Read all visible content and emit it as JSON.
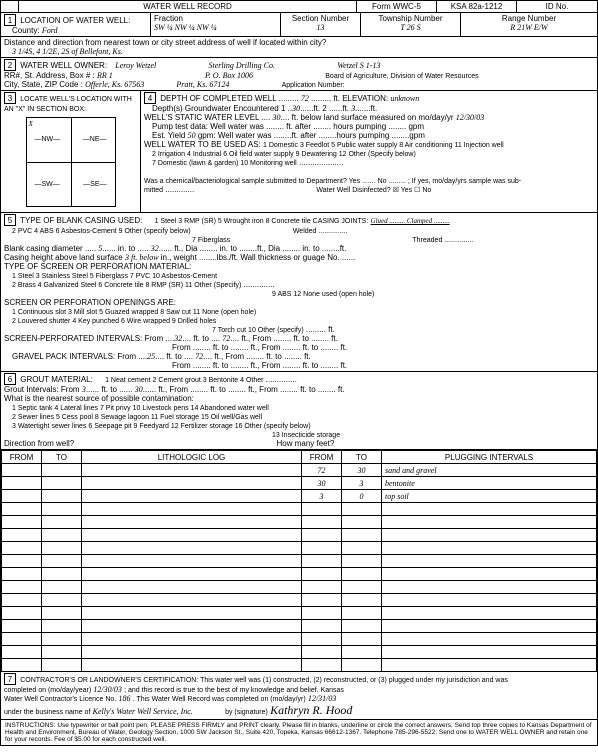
{
  "header": {
    "title": "WATER WELL RECORD",
    "form": "Form WWC-5",
    "ksa": "KSA 82a-1212",
    "id_label": "ID No."
  },
  "s1": {
    "label": "LOCATION OF WATER WELL:",
    "county_label": "County:",
    "county": "Ford",
    "fraction_label": "Fraction",
    "fraction": "SW ¼ NW ¼ NW ¼",
    "section_label": "Section Number",
    "section": "13",
    "township_label": "Township Number",
    "township": "T 26 S",
    "range_label": "Range Number",
    "range": "R 21W E/W",
    "distance_label": "Distance and direction from nearest town or city street address of well if located within city?",
    "distance": "3 1/4S, 4 1/2E, 2S of Bellefont, Ks."
  },
  "s2": {
    "label": "WATER WELL OWNER:",
    "owner": "Leroy Wetzel",
    "company": "Sterling Drilling Co.",
    "ref": "Wetzel S 1-13",
    "rr_label": "RR#, St. Address, Box #",
    "rr": "RR 1",
    "pobox": "P. O. Box 1006",
    "board": "Board of Agriculture, Division of Water Resources",
    "city_label": "City, State, ZIP Code",
    "city": "Offerle, Ks. 67563",
    "city2": "Pratt, Ks. 67124",
    "app_label": "Application Number:"
  },
  "s3": {
    "label": "LOCATE WELL'S LOCATION WITH AN \"X\" IN SECTION BOX:",
    "nw": "NW",
    "ne": "NE",
    "sw": "SW",
    "se": "SE",
    "x": "X"
  },
  "s4": {
    "label": "DEPTH OF COMPLETED WELL",
    "depth": "72",
    "elev_label": "ft. ELEVATION:",
    "elev": "unknown",
    "gw_label": "Depth(s) Groundwater Encountered",
    "gw1": "30",
    "gw2": "3.",
    "static_label": "WELL'S STATIC WATER LEVEL",
    "static": "30",
    "static_suffix": "ft. below land surface measured on mo/day/yr",
    "static_date": "12/30/03",
    "pump_label": "Pump test data: Well water was",
    "after_label": "ft. after",
    "hours_label": "hours pumping",
    "gpm_label": "gpm",
    "yield_label": "Est. Yield",
    "yield": "50",
    "uses_label": "WELL WATER TO BE USED AS:",
    "uses": "1 Domestic   3 Feedlot   5 Public water supply   8 Air conditioning   11 Injection well",
    "uses2": "2 Irrigation   4 Industrial   6 Oil field water supply   9 Dewatering   12 Other (Specify below)",
    "uses3": "7 Domestic (lawn & garden)   10 Monitoring well",
    "chem_label": "Was a chemical/bacteriological sample submitted to Department? Yes ....... No ......... ; If yes, mo/day/yrs sample was sub-",
    "mitted": "mitted",
    "disinfected": "Water Well Disinfected? ☒ Yes   ☐ No"
  },
  "s5": {
    "label": "TYPE OF BLANK CASING USED:",
    "opts": "1 Steel   3 RMP (SR)   5 Wrought iron   8 Concrete tile   CASING JOINTS:",
    "opts2": "2 PVC   4 ABS   6 Asbestos-Cement   9 Other (specify below)",
    "opts3": "7 Fiberglass",
    "joints": "Glued ......... Clamped .........",
    "joints2": "Welded ...............",
    "joints3": "Threaded ...............",
    "dia_label": "Blank casing diameter",
    "dia": "5",
    "dia_to": "32",
    "height_label": "Casing height above land surface",
    "height": "3 ft. below",
    "perf_label": "TYPE OF SCREEN OR PERFORATION MATERIAL:",
    "perf_opts": "1 Steel   3 Stainless Steel   5 Fiberglass   7 PVC   10 Asbestos-Cement",
    "perf_opts2": "2 Brass   4 Galvanized Steel   6 Concrete tile   8 RMP (SR)   11 Other (Specify)",
    "perf_opts3": "9 ABS   12 None used (open hole)",
    "open_label": "SCREEN OR PERFORATION OPENINGS ARE:",
    "open_opts": "1 Continuous slot   3 Mill slot   5 Guazed wrapped   8 Saw cut   11 None (open hole)",
    "open_opts2": "2 Louvered shutter   4 Key punched   6 Wire wrapped   9 Drilled holes",
    "open_opts3": "7 Torch cut   10 Other (specify)",
    "sp_label": "SCREEN-PERFORATED INTERVALS:",
    "sp_from": "32",
    "sp_to": "72",
    "gp_label": "GRAVEL PACK INTERVALS:",
    "gp_from": "25",
    "gp_to": "72"
  },
  "s6": {
    "label": "GROUT MATERIAL:",
    "opts": "1 Neat cement   2 Cement grout   3 Bentonite   4 Other",
    "int_label": "Grout Intervals: From",
    "int_from": "3",
    "int_to": "30",
    "contam_label": "What is the nearest source of possible contamination:",
    "c1": "1 Septic tank   4 Lateral lines   7 Pit privy   10 Livestock pens   14 Abandoned water well",
    "c2": "2 Sewer lines   5 Cess pool   8 Sewage lagoon   11 Fuel storage   15 Oil well/Gas well",
    "c3": "3 Watertight sewer lines   6 Seepage pit   9 Feedyard   12 Fertilizer storage   16 Other (specify below)",
    "c4": "13 Insecticide storage",
    "dir_label": "Direction from well?",
    "dir2": "How many feet?"
  },
  "log": {
    "headers": [
      "FROM",
      "TO",
      "LITHOLOGIC LOG",
      "FROM",
      "TO",
      "PLUGGING INTERVALS"
    ],
    "rows": [
      [
        "",
        "",
        "",
        "72",
        "30",
        "sand and gravel"
      ],
      [
        "",
        "",
        "",
        "30",
        "3",
        "bentonite"
      ],
      [
        "",
        "",
        "",
        "3",
        "0",
        "top soil"
      ]
    ]
  },
  "s7": {
    "label": "CONTRACTOR'S OR LANDOWNER'S CERTIFICATION: This water well was (1) constructed, (2) reconstructed, or (3) plugged under my jurisdiction and was",
    "completed_label": "completed on (mo/day/year)",
    "completed": "12/30/03",
    "truth": "; and this record is true to the best of my knowledge and belief. Kansas",
    "license_label": "Water Well Contractor's Licence No.",
    "license": "186",
    "rec_label": ". This Water Well Record was completed on (mo/day/yr)",
    "rec_date": "12/31/03",
    "biz_label": "under the business name of",
    "biz": "Kelly's Water Well Service, Inc.",
    "sig_label": "by (signature)",
    "sig": "Kathryn R. Hood"
  },
  "footer": "INSTRUCTIONS: Use typewriter or ball point pen. PLEASE PRESS FIRMLY and PRINT clearly. Please fill in blanks, underline or circle the correct answers. Send top three copies to Kansas Department of Health and Environment, Bureau of Water, Geology Section, 1000 SW Jackson St., Suite 420, Topeka, Kansas 66612-1367. Telephone 785-296-5522. Send one to WATER WELL OWNER and retain one for your records. Fee of $5.00 for each constructed well."
}
